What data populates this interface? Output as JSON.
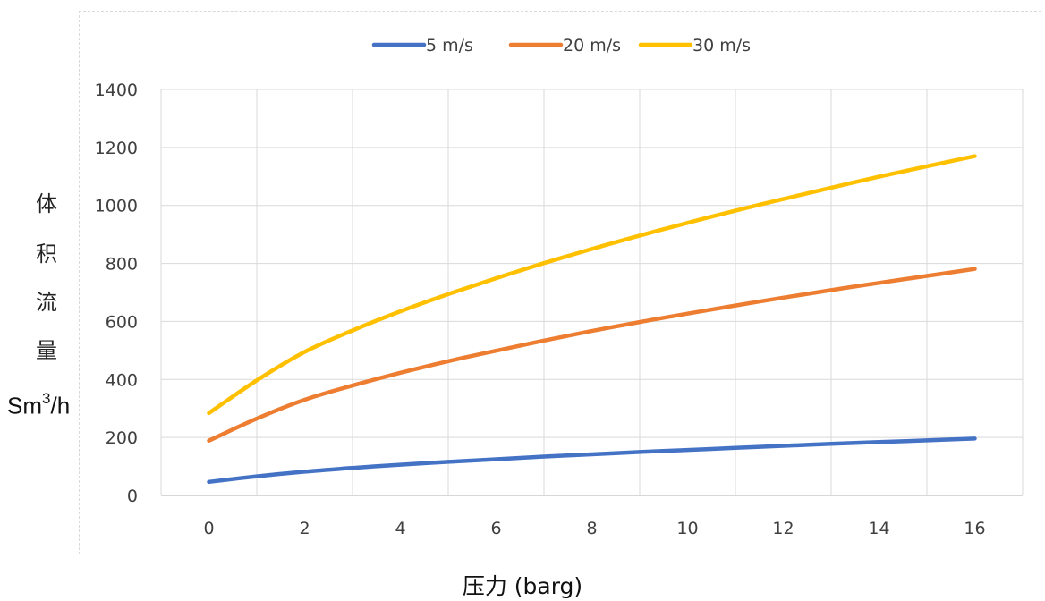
{
  "chart_data": {
    "type": "line",
    "title": "",
    "xlabel": "压力 (barg)",
    "ylabel": {
      "chars": [
        "体",
        "积",
        "流",
        "量"
      ],
      "unit_main": "Sm",
      "unit_sup": "3",
      "unit_tail": "/h"
    },
    "x_ticks": [
      "0",
      "2",
      "4",
      "6",
      "8",
      "10",
      "12",
      "14",
      "16"
    ],
    "y_ticks": [
      "0",
      "200",
      "400",
      "600",
      "800",
      "1000",
      "1200",
      "1400"
    ],
    "xlim": [
      -1,
      17
    ],
    "ylim": [
      0,
      1400
    ],
    "grid": true,
    "legend_position": "top-center",
    "x": [
      0,
      1,
      2,
      3,
      4,
      5,
      6,
      7,
      8,
      9,
      10,
      11,
      12,
      13,
      14,
      15,
      16
    ],
    "series": [
      {
        "name": "5 m/s",
        "color": "#4472C4",
        "values": [
          47,
          66,
          82,
          95,
          106,
          116,
          125,
          134,
          142,
          150,
          157,
          164,
          171,
          178,
          184,
          190,
          196
        ]
      },
      {
        "name": "20 m/s",
        "color": "#ED7D31",
        "values": [
          189,
          265,
          330,
          379,
          423,
          463,
          499,
          534,
          567,
          598,
          627,
          655,
          682,
          708,
          733,
          757,
          781
        ]
      },
      {
        "name": "30 m/s",
        "color": "#FFC000",
        "values": [
          284,
          397,
          495,
          569,
          635,
          694,
          749,
          801,
          850,
          896,
          940,
          982,
          1022,
          1061,
          1099,
          1135,
          1170
        ]
      }
    ]
  }
}
